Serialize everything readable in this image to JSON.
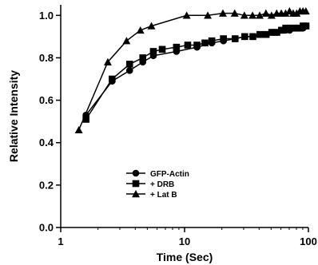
{
  "chart_data": {
    "type": "line",
    "xlabel": "Time (Sec)",
    "ylabel": "Relative Intensity",
    "xscale": "log",
    "xlim": [
      1,
      100
    ],
    "ylim": [
      0.0,
      1.05
    ],
    "x_tick_labels": [
      "1",
      "10",
      "100"
    ],
    "y_tick_labels": [
      "0.0",
      "0.2",
      "0.4",
      "0.6",
      "0.8",
      "1.0"
    ],
    "legend_placement": "bottom-center",
    "series": [
      {
        "name": "GFP-Actin",
        "marker": "circle",
        "x": [
          1.6,
          2.6,
          3.6,
          4.6,
          5.6,
          8.6,
          12.6,
          16.6,
          20.6,
          25.6,
          30.6,
          35.6,
          40.6,
          45.6,
          50.6,
          55.6,
          60.6,
          65.6,
          70.6,
          75.6,
          80.6,
          85.6,
          90.6,
          95.6
        ],
        "y": [
          0.53,
          0.69,
          0.74,
          0.78,
          0.81,
          0.83,
          0.85,
          0.87,
          0.88,
          0.89,
          0.9,
          0.9,
          0.91,
          0.91,
          0.92,
          0.92,
          0.93,
          0.93,
          0.93,
          0.94,
          0.94,
          0.94,
          0.94,
          0.95
        ]
      },
      {
        "name": "+ DRB",
        "marker": "square",
        "x": [
          1.6,
          2.6,
          3.6,
          4.6,
          5.6,
          6.6,
          8.6,
          10.6,
          12.6,
          14.6,
          16.6,
          20.6,
          25.6,
          30.6,
          35.6,
          40.6,
          45.6,
          50.6,
          55.6,
          60.6,
          65.6,
          70.6,
          75.6,
          80.6,
          85.6,
          90.6,
          95.6
        ],
        "y": [
          0.51,
          0.7,
          0.77,
          0.8,
          0.83,
          0.84,
          0.85,
          0.86,
          0.86,
          0.87,
          0.88,
          0.89,
          0.89,
          0.9,
          0.9,
          0.91,
          0.91,
          0.92,
          0.92,
          0.93,
          0.94,
          0.94,
          0.94,
          0.94,
          0.94,
          0.95,
          0.95
        ]
      },
      {
        "name": "+ Lat B",
        "marker": "triangle",
        "x": [
          1.4,
          2.4,
          3.4,
          4.4,
          5.4,
          10.4,
          15.4,
          20.4,
          25.4,
          30.4,
          35.4,
          40.4,
          45.4,
          50.4,
          55.4,
          60.4,
          65.4,
          70.4,
          75.4,
          80.4,
          85.4,
          90.4,
          95.4
        ],
        "y": [
          0.46,
          0.78,
          0.88,
          0.93,
          0.95,
          1.0,
          1.0,
          1.01,
          1.01,
          1.0,
          1.0,
          1.0,
          1.01,
          1.0,
          1.01,
          1.01,
          1.01,
          1.02,
          1.01,
          1.01,
          1.02,
          1.02,
          1.02
        ]
      }
    ]
  }
}
